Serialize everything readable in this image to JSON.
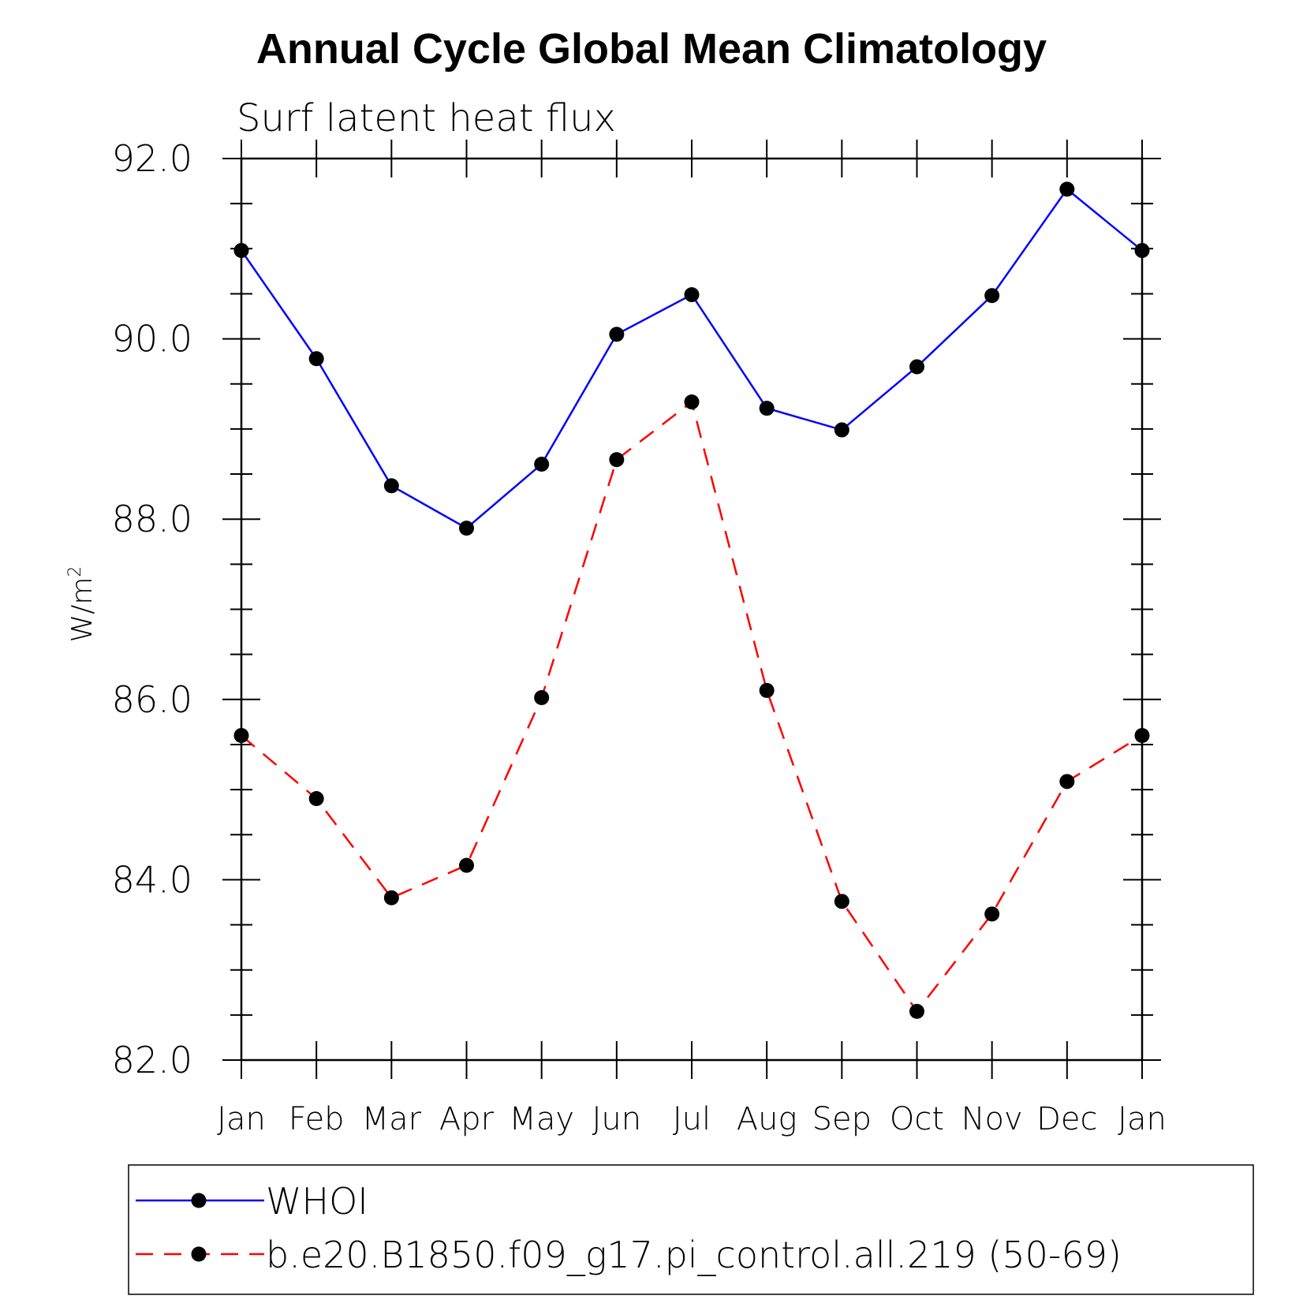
{
  "chart_data": {
    "type": "line",
    "title": "Annual Cycle Global Mean Climatology",
    "subtitle": "Surf latent heat flux",
    "ylabel": "W/m",
    "ylabel_superscript": "2",
    "xlabel": "",
    "ylim": [
      82.0,
      92.0
    ],
    "yticks": [
      "82.0",
      "84.0",
      "86.0",
      "88.0",
      "90.0",
      "92.0"
    ],
    "categories": [
      "Jan",
      "Feb",
      "Mar",
      "Apr",
      "May",
      "Jun",
      "Jul",
      "Aug",
      "Sep",
      "Oct",
      "Nov",
      "Dec",
      "Jan"
    ],
    "series": [
      {
        "name": "WHOI",
        "color": "#0000ff",
        "dash": "solid",
        "marker": "filled-circle",
        "values": [
          90.98,
          89.78,
          88.37,
          87.9,
          88.61,
          90.05,
          90.49,
          89.23,
          88.99,
          89.69,
          90.48,
          91.66,
          90.98
        ]
      },
      {
        "name": "b.e20.B1850.f09_g17.pi_control.all.219 (50-69)",
        "color": "#ff0000",
        "dash": "dashed",
        "marker": "filled-circle",
        "values": [
          85.6,
          84.9,
          83.8,
          84.16,
          86.02,
          88.66,
          89.3,
          86.1,
          83.76,
          82.54,
          83.62,
          85.09,
          85.6
        ]
      }
    ],
    "grid": false,
    "legend_position": "bottom"
  }
}
